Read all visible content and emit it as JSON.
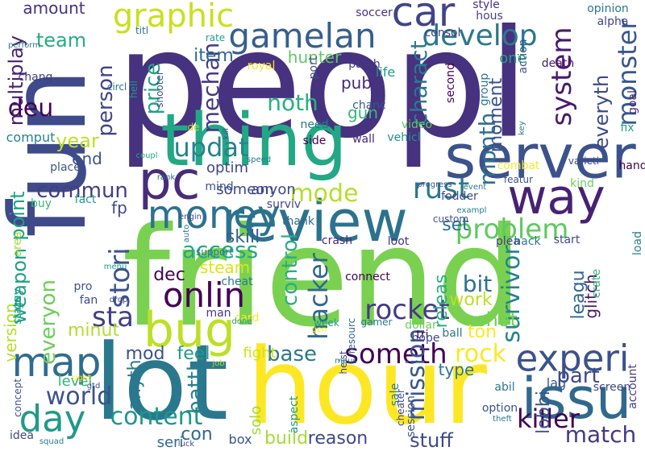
{
  "words": [
    {
      "text": "peopl",
      "color": "#46327e"
    },
    {
      "text": "friend",
      "color": "#7ad151"
    },
    {
      "text": "fun",
      "color": "#3e4a89"
    },
    {
      "text": "lot",
      "color": "#2a788e"
    },
    {
      "text": "hour",
      "color": "#fde725"
    },
    {
      "text": "thing",
      "color": "#22a884"
    },
    {
      "text": "review",
      "color": "#2c728e"
    },
    {
      "text": "server",
      "color": "#3b528b"
    },
    {
      "text": "issu",
      "color": "#31688e"
    },
    {
      "text": "way",
      "color": "#482173"
    },
    {
      "text": "pc",
      "color": "#472d7b"
    },
    {
      "text": "money",
      "color": "#2c728e"
    },
    {
      "text": "bug",
      "color": "#bddf26"
    },
    {
      "text": "map",
      "color": "#2f6c8e"
    },
    {
      "text": "day",
      "color": "#1f9a8a"
    },
    {
      "text": "experi",
      "color": "#3b528b"
    },
    {
      "text": "car",
      "color": "#414487"
    },
    {
      "text": "gamelan",
      "color": "#355f8d"
    },
    {
      "text": "graphic",
      "color": "#c8e020"
    },
    {
      "text": "develop",
      "color": "#2a788e"
    },
    {
      "text": "onlin",
      "color": "#440154"
    },
    {
      "text": "updat",
      "color": "#26828e"
    },
    {
      "text": "rust",
      "color": "#2a788e"
    },
    {
      "text": "problem",
      "color": "#5ec962"
    },
    {
      "text": "someth",
      "color": "#440154"
    },
    {
      "text": "rocket",
      "color": "#443a83"
    },
    {
      "text": "killer",
      "color": "#440154"
    },
    {
      "text": "match",
      "color": "#443983"
    },
    {
      "text": "content",
      "color": "#1f968b"
    },
    {
      "text": "world",
      "color": "#3b528b"
    },
    {
      "text": "commun",
      "color": "#433e85"
    },
    {
      "text": "mode",
      "color": "#b5de2b"
    },
    {
      "text": "access",
      "color": "#23a983"
    },
    {
      "text": "system",
      "color": "#481a6c"
    },
    {
      "text": "month",
      "color": "#2c728e"
    },
    {
      "text": "monster",
      "color": "#38588c"
    },
    {
      "text": "hacker",
      "color": "#31688e"
    },
    {
      "text": "control",
      "color": "#29af7f"
    },
    {
      "text": "survivor",
      "color": "#25838e"
    },
    {
      "text": "mission",
      "color": "#39568c"
    },
    {
      "text": "part",
      "color": "#3e4989"
    },
    {
      "text": "rock",
      "color": "#fde725"
    },
    {
      "text": "base",
      "color": "#2a788e"
    },
    {
      "text": "noth",
      "color": "#2ab07f"
    },
    {
      "text": "team",
      "color": "#26ad81"
    },
    {
      "text": "deu",
      "color": "#440154"
    },
    {
      "text": "year",
      "color": "#bddf26"
    },
    {
      "text": "stori",
      "color": "#3b528b"
    },
    {
      "text": "point",
      "color": "#1fa088"
    },
    {
      "text": "weapon",
      "color": "#1f9e89"
    },
    {
      "text": "everyon",
      "color": "#6ccd5a"
    },
    {
      "text": "battl",
      "color": "#277f8e"
    },
    {
      "text": "charact",
      "color": "#2a788e"
    },
    {
      "text": "mechan",
      "color": "#443983"
    },
    {
      "text": "price",
      "color": "#20a386"
    },
    {
      "text": "person",
      "color": "#414487"
    },
    {
      "text": "multiplay",
      "color": "#481f70"
    },
    {
      "text": "hunter",
      "color": "#5ec962"
    },
    {
      "text": "item",
      "color": "#31688e"
    },
    {
      "text": "everyth",
      "color": "#3e4989"
    },
    {
      "text": "sta",
      "color": "#433e85"
    },
    {
      "text": "bit",
      "color": "#2d708e"
    },
    {
      "text": "work",
      "color": "#bddf26"
    },
    {
      "text": "shot",
      "color": "#73d056"
    },
    {
      "text": "skill",
      "color": "#355e8d"
    },
    {
      "text": "minut",
      "color": "#b5de2b"
    },
    {
      "text": "dec",
      "color": "#440154"
    },
    {
      "text": "feel",
      "color": "#1f9a8a"
    },
    {
      "text": "mod",
      "color": "#3b528b"
    },
    {
      "text": "anyth",
      "color": "#2a788e"
    },
    {
      "text": "build",
      "color": "#a5db36"
    },
    {
      "text": "reason",
      "color": "#3e4989"
    },
    {
      "text": "stuff",
      "color": "#3e4989"
    },
    {
      "text": "con",
      "color": "#31688e"
    },
    {
      "text": "leagu",
      "color": "#31688e"
    },
    {
      "text": "releas",
      "color": "#29af7f"
    },
    {
      "text": "moment",
      "color": "#3b528b"
    },
    {
      "text": "gun",
      "color": "#35b779"
    },
    {
      "text": "pub",
      "color": "#482878"
    },
    {
      "text": "level",
      "color": "#35b779"
    },
    {
      "text": "steam",
      "color": "#dde318"
    },
    {
      "text": "fp",
      "color": "#3e4989"
    },
    {
      "text": "end",
      "color": "#3b528b"
    },
    {
      "text": "optim",
      "color": "#3e4989"
    },
    {
      "text": "someon",
      "color": "#3e4989"
    },
    {
      "text": "anyon",
      "color": "#3e4989"
    },
    {
      "text": "ton",
      "color": "#fde725"
    },
    {
      "text": "set",
      "color": "#2d708e"
    },
    {
      "text": "amount",
      "color": "#46327e"
    },
    {
      "text": "life",
      "color": "#1f968b"
    },
    {
      "text": "one",
      "color": "#20a386"
    },
    {
      "text": "glitch",
      "color": "#481a6c"
    },
    {
      "text": "version",
      "color": "#b5de2b"
    },
    {
      "text": "solo",
      "color": "#9fda3a"
    },
    {
      "text": "seri",
      "color": "#31688e"
    },
    {
      "text": "box",
      "color": "#3b528b"
    },
    {
      "text": "fight",
      "color": "#d2e21b"
    },
    {
      "text": "type",
      "color": "#2a788e"
    },
    {
      "text": "lag",
      "color": "#39568c"
    },
    {
      "text": "lobbi",
      "color": "#3b528b"
    },
    {
      "text": "royal",
      "color": "#fde725"
    },
    {
      "text": "patch",
      "color": "#443983"
    },
    {
      "text": "chanc",
      "color": "#39568c"
    },
    {
      "text": "video",
      "color": "#5ec962"
    },
    {
      "text": "need",
      "color": "#2a788e"
    },
    {
      "text": "side",
      "color": "#440154"
    },
    {
      "text": "wall",
      "color": "#482878"
    },
    {
      "text": "vehicl",
      "color": "#21918c"
    },
    {
      "text": "comput",
      "color": "#26828e"
    },
    {
      "text": "place",
      "color": "#39568c"
    },
    {
      "text": "buy",
      "color": "#35b779"
    },
    {
      "text": "fact",
      "color": "#1f9a8a"
    },
    {
      "text": "area",
      "color": "#a5db36"
    },
    {
      "text": "state",
      "color": "#22a884"
    },
    {
      "text": "pro",
      "color": "#3b528b"
    },
    {
      "text": "fan",
      "color": "#3e4989"
    },
    {
      "text": "guy",
      "color": "#1f9a8a"
    },
    {
      "text": "cheat",
      "color": "#2a788e"
    },
    {
      "text": "card",
      "color": "#fde725"
    },
    {
      "text": "man",
      "color": "#443983"
    },
    {
      "text": "connect",
      "color": "#440154"
    },
    {
      "text": "loot",
      "color": "#46327e"
    },
    {
      "text": "crash",
      "color": "#482878"
    },
    {
      "text": "surviv",
      "color": "#404688"
    },
    {
      "text": "thank",
      "color": "#31688e"
    },
    {
      "text": "plea",
      "color": "#443983"
    },
    {
      "text": "hack",
      "color": "#2a788e"
    },
    {
      "text": "start",
      "color": "#3e4989"
    },
    {
      "text": "kind",
      "color": "#6ccd5a"
    },
    {
      "text": "load",
      "color": "#277f8e"
    },
    {
      "text": "hand",
      "color": "#440154"
    },
    {
      "text": "fix",
      "color": "#1fa088"
    },
    {
      "text": "goal",
      "color": "#482878"
    },
    {
      "text": "opinion",
      "color": "#2a788e"
    },
    {
      "text": "alpha",
      "color": "#404688"
    },
    {
      "text": "style",
      "color": "#46327e"
    },
    {
      "text": "death",
      "color": "#481a6c"
    },
    {
      "text": "action",
      "color": "#39568c"
    },
    {
      "text": "second",
      "color": "#440154"
    },
    {
      "text": "group",
      "color": "#2a788e"
    },
    {
      "text": "consol",
      "color": "#433e85"
    },
    {
      "text": "hous",
      "color": "#414487"
    },
    {
      "text": "soccer",
      "color": "#46327e"
    },
    {
      "text": "port",
      "color": "#3b528b"
    },
    {
      "text": "titl",
      "color": "#2a788e"
    },
    {
      "text": "rate",
      "color": "#1f9e89"
    },
    {
      "text": "circl",
      "color": "#2a788e"
    },
    {
      "text": "hell",
      "color": "#1f9a8a"
    },
    {
      "text": "shooter",
      "color": "#3b528b"
    },
    {
      "text": "chang",
      "color": "#433e85"
    },
    {
      "text": "perform",
      "color": "#2a788e"
    },
    {
      "text": "de",
      "color": "#b5de2b"
    },
    {
      "text": "kill",
      "color": "#3e4989"
    },
    {
      "text": "coupl",
      "color": "#22a884"
    },
    {
      "text": "speed",
      "color": "#2a788e"
    },
    {
      "text": "rank",
      "color": "#31688e"
    },
    {
      "text": "mind",
      "color": "#3b528b"
    },
    {
      "text": "auto",
      "color": "#2a788e"
    },
    {
      "text": "engin",
      "color": "#3e4989"
    },
    {
      "text": "menu",
      "color": "#1f9a8a"
    },
    {
      "text": "support",
      "color": "#2a788e"
    },
    {
      "text": "drop",
      "color": "#3e4989"
    },
    {
      "text": "done",
      "color": "#1f968b"
    },
    {
      "text": "gen",
      "color": "#fde725"
    },
    {
      "text": "gamer",
      "color": "#2a788e"
    },
    {
      "text": "dollar",
      "color": "#6ccd5a"
    },
    {
      "text": "tri",
      "color": "#440154"
    },
    {
      "text": "hope",
      "color": "#3e4989"
    },
    {
      "text": "ball",
      "color": "#2a788e"
    },
    {
      "text": "crate",
      "color": "#35b779"
    },
    {
      "text": "custom",
      "color": "#3b528b"
    },
    {
      "text": "exampl",
      "color": "#2a788e"
    },
    {
      "text": "progress",
      "color": "#39568c"
    },
    {
      "text": "event",
      "color": "#2a788e"
    },
    {
      "text": "featur",
      "color": "#3b528b"
    },
    {
      "text": "combat",
      "color": "#fde725"
    },
    {
      "text": "varieti",
      "color": "#3e4989"
    },
    {
      "text": "key",
      "color": "#2a788e"
    },
    {
      "text": "fodder",
      "color": "#3e4989"
    },
    {
      "text": "week",
      "color": "#1f9a8a"
    },
    {
      "text": "resourc",
      "color": "#31688e"
    },
    {
      "text": "heist",
      "color": "#3e4989"
    },
    {
      "text": "sale",
      "color": "#2a788e"
    },
    {
      "text": "session",
      "color": "#3b528b"
    },
    {
      "text": "cheater",
      "color": "#3e4989"
    },
    {
      "text": "abil",
      "color": "#2a788e"
    },
    {
      "text": "option",
      "color": "#3b528b"
    },
    {
      "text": "theft",
      "color": "#2a788e"
    },
    {
      "text": "screen",
      "color": "#3e4989"
    },
    {
      "text": "account",
      "color": "#433e85"
    },
    {
      "text": "job",
      "color": "#a5db36"
    },
    {
      "text": "mous",
      "color": "#2a788e"
    },
    {
      "text": "aspect",
      "color": "#1f9a8a"
    },
    {
      "text": "concept",
      "color": "#3b528b"
    },
    {
      "text": "right",
      "color": "#fde725"
    },
    {
      "text": "gtd",
      "color": "#39568c"
    },
    {
      "text": "idea",
      "color": "#3e4989"
    },
    {
      "text": "squad",
      "color": "#2a788e"
    },
    {
      "text": "luck",
      "color": "#3b528b"
    }
  ]
}
